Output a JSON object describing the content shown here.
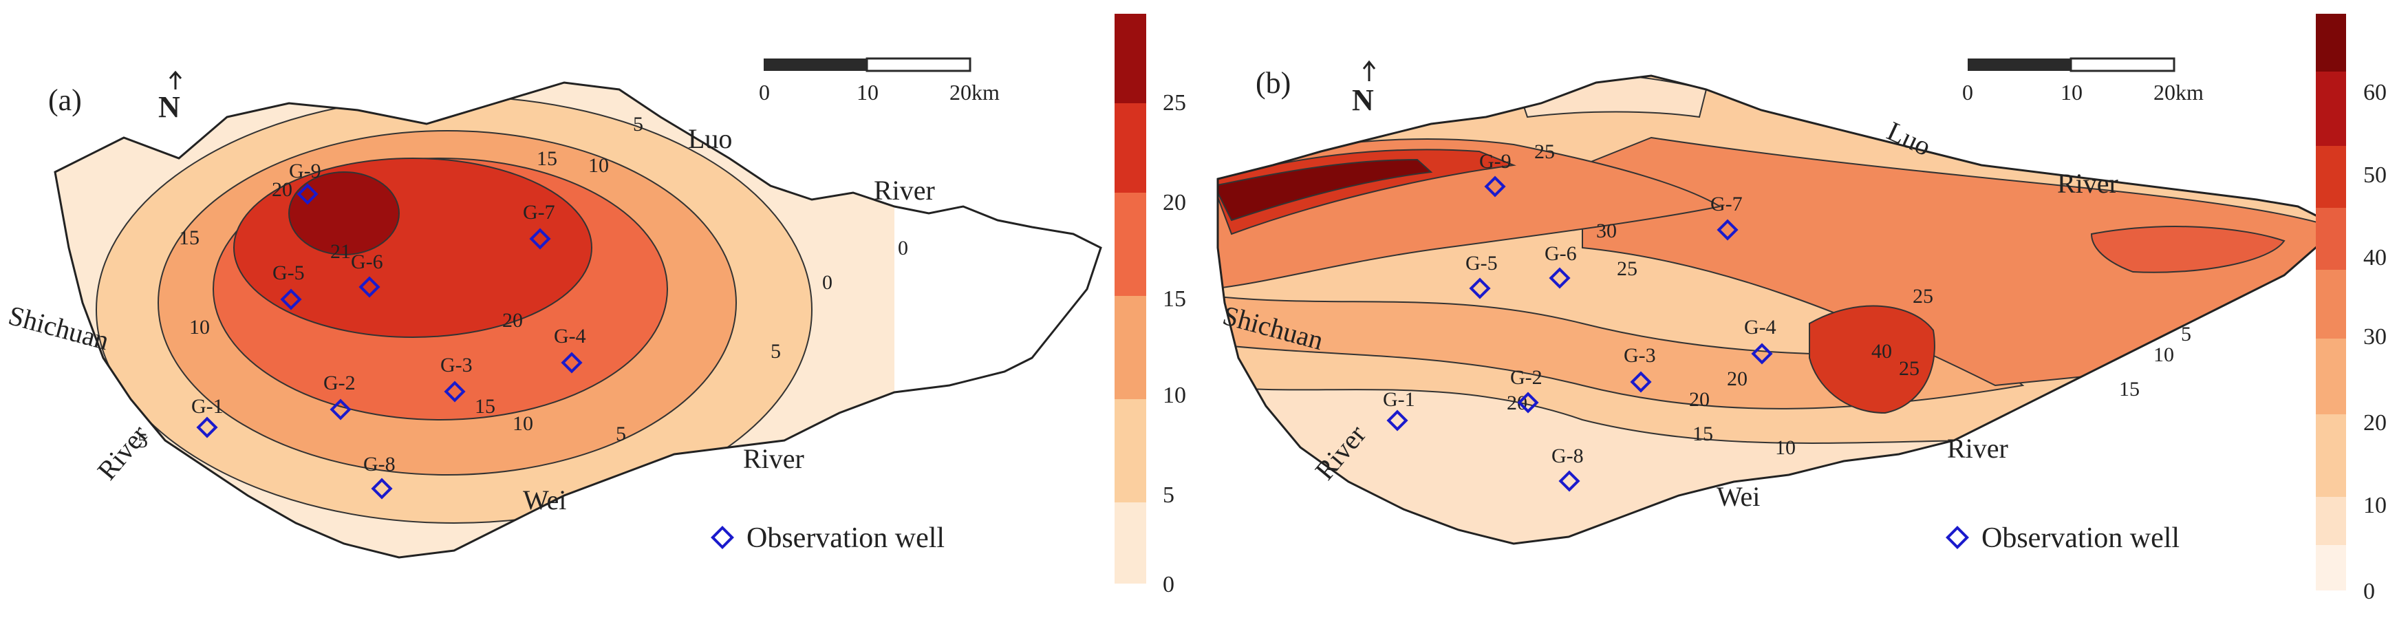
{
  "figure": {
    "panels": [
      {
        "id": "a",
        "label": "(a)",
        "north": "N",
        "scale": {
          "ticks": [
            "0",
            "10",
            "20km"
          ]
        },
        "rivers": {
          "luo": "Luo",
          "river_ne": "River",
          "shichuan": "Shichuan",
          "river_w": "River",
          "river_se": "River",
          "wei": "Wei"
        },
        "contour_labels": [
          "5",
          "10",
          "15",
          "20",
          "21",
          "15",
          "10",
          "5",
          "20",
          "15",
          "10",
          "5",
          "5",
          "0",
          "0"
        ],
        "wells": [
          "G-1",
          "G-2",
          "G-3",
          "G-4",
          "G-5",
          "G-6",
          "G-7",
          "G-8",
          "G-9"
        ],
        "legend_text": "Observation well",
        "colorbar": {
          "ticks": [
            "0",
            "5",
            "10",
            "15",
            "20",
            "25"
          ],
          "colors": [
            "#fde9d3",
            "#fbcf9f",
            "#f6a56f",
            "#ef6a45",
            "#d7321f",
            "#9b0e0e"
          ]
        }
      },
      {
        "id": "b",
        "label": "(b)",
        "north": "N",
        "scale": {
          "ticks": [
            "0",
            "10",
            "20km"
          ]
        },
        "rivers": {
          "luo": "Luo",
          "river_ne": "River",
          "shichuan": "Shichuan",
          "river_w": "River",
          "river_se": "River",
          "wei": "Wei"
        },
        "contour_labels": [
          "25",
          "30",
          "25",
          "25",
          "20",
          "20",
          "15",
          "10",
          "40",
          "25",
          "10",
          "5",
          "15",
          "20"
        ],
        "wells": [
          "G-1",
          "G-2",
          "G-3",
          "G-4",
          "G-5",
          "G-6",
          "G-7",
          "G-8",
          "G-9"
        ],
        "legend_text": "Observation well",
        "colorbar": {
          "ticks": [
            "0",
            "10",
            "20",
            "30",
            "40",
            "50",
            "60"
          ],
          "colors": [
            "#fef1e5",
            "#fde1c6",
            "#fbcc9e",
            "#f8ae7a",
            "#f28a5b",
            "#e8603f",
            "#d7381f",
            "#b31515",
            "#7c0707"
          ]
        }
      }
    ]
  }
}
